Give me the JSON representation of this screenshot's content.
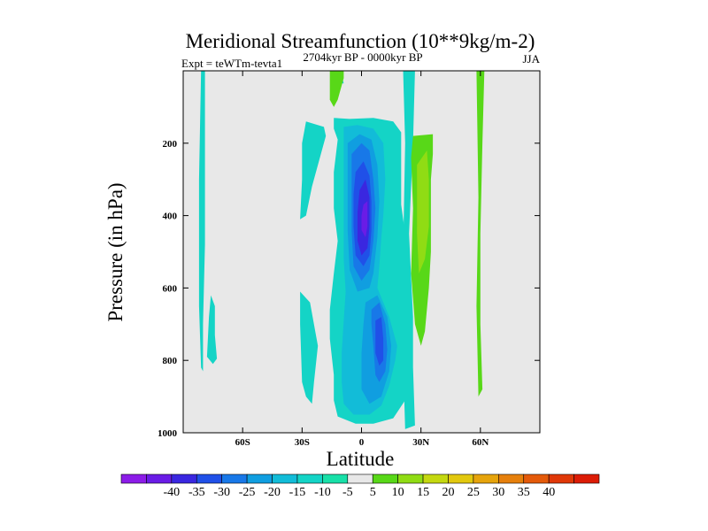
{
  "chart_data": {
    "type": "contour",
    "title": "Meridional Streamfunction (10**9kg/m-2)",
    "subtitle_left": "Expt = teWTm-tevta1",
    "subtitle_center": "2704kyr BP - 0000kyr BP",
    "subtitle_right": "JJA",
    "xlabel": "Latitude",
    "ylabel": "Pressure (in hPa)",
    "xlim": [
      -90,
      90
    ],
    "ylim": [
      0,
      1000
    ],
    "y_inverted": true,
    "x_ticks": [
      {
        "value": -60,
        "label": "60S"
      },
      {
        "value": -30,
        "label": "30S"
      },
      {
        "value": 0,
        "label": "0"
      },
      {
        "value": 30,
        "label": "30N"
      },
      {
        "value": 60,
        "label": "60N"
      }
    ],
    "y_ticks": [
      {
        "value": 200,
        "label": "200"
      },
      {
        "value": 400,
        "label": "400"
      },
      {
        "value": 600,
        "label": "600"
      },
      {
        "value": 800,
        "label": "800"
      },
      {
        "value": 1000,
        "label": "1000"
      }
    ],
    "background_color": "#e8e8e8",
    "colorbar": {
      "colors": [
        "#8c1ce8",
        "#6a1ce6",
        "#3a27e0",
        "#2050e8",
        "#1878e8",
        "#109ee0",
        "#12bcd8",
        "#14d4c6",
        "#18e0a8",
        "#e8e8e8",
        "#58d818",
        "#90dc14",
        "#c4d810",
        "#e2c80e",
        "#e6a40c",
        "#e6800c",
        "#e45a0a",
        "#e03808",
        "#dc1c06"
      ],
      "labels": [
        "-40",
        "-35",
        "-30",
        "-25",
        "-20",
        "-15",
        "-10",
        "-5",
        "5",
        "10",
        "15",
        "20",
        "25",
        "30",
        "35",
        "40"
      ]
    },
    "contours": [
      {
        "level": -5,
        "color": "#14d4c6",
        "points": [
          [
            -14,
            130
          ],
          [
            -6,
            133
          ],
          [
            6,
            130
          ],
          [
            16,
            140
          ],
          [
            20,
            170
          ],
          [
            20,
            250
          ],
          [
            20,
            370
          ],
          [
            22,
            450
          ],
          [
            22,
            540
          ],
          [
            22,
            620
          ],
          [
            22,
            740
          ],
          [
            24,
            830
          ],
          [
            22,
            910
          ],
          [
            16,
            960
          ],
          [
            6,
            975
          ],
          [
            -3,
            975
          ],
          [
            -12,
            955
          ],
          [
            -14,
            910
          ],
          [
            -14,
            840
          ],
          [
            -16,
            740
          ],
          [
            -16,
            660
          ],
          [
            -14,
            560
          ],
          [
            -12,
            470
          ],
          [
            -14,
            380
          ],
          [
            -14,
            280
          ],
          [
            -12,
            190
          ],
          [
            -14,
            160
          ]
        ]
      },
      {
        "level": -5,
        "color": "#14d4c6",
        "points": [
          [
            -12,
            35
          ],
          [
            -13,
            10
          ],
          [
            -16,
            0
          ],
          [
            -13,
            0
          ],
          [
            -10,
            10
          ],
          [
            -9,
            35
          ]
        ]
      },
      {
        "level": -5,
        "color": "#14d4c6",
        "points": [
          [
            -28,
            140
          ],
          [
            -19,
            155
          ],
          [
            -18,
            180
          ],
          [
            -25,
            320
          ],
          [
            -28,
            400
          ],
          [
            -31,
            410
          ],
          [
            -30,
            300
          ],
          [
            -30,
            200
          ]
        ]
      },
      {
        "level": -5,
        "color": "#14d4c6",
        "points": [
          [
            -31,
            610
          ],
          [
            -26,
            640
          ],
          [
            -22,
            760
          ],
          [
            -24,
            860
          ],
          [
            -25,
            920
          ],
          [
            -28,
            900
          ],
          [
            -30,
            860
          ],
          [
            -31,
            700
          ]
        ]
      },
      {
        "level": -5,
        "color": "#14d4c6",
        "points": [
          [
            -81,
            0
          ],
          [
            -79,
            0
          ],
          [
            -79,
            480
          ],
          [
            -80,
            700
          ],
          [
            -80,
            830
          ],
          [
            -81,
            820
          ],
          [
            -82,
            650
          ],
          [
            -82,
            300
          ]
        ]
      },
      {
        "level": -5,
        "color": "#14d4c6",
        "points": [
          [
            -76,
            620
          ],
          [
            -74,
            650
          ],
          [
            -74,
            730
          ],
          [
            -73,
            795
          ],
          [
            -75,
            810
          ],
          [
            -78,
            790
          ],
          [
            -77,
            680
          ]
        ]
      },
      {
        "level": -5,
        "color": "#14d4c6",
        "points": [
          [
            21,
            0
          ],
          [
            27,
            0
          ],
          [
            26,
            200
          ],
          [
            24,
            450
          ],
          [
            26,
            680
          ],
          [
            26,
            820
          ],
          [
            27,
            980
          ],
          [
            22,
            990
          ],
          [
            21,
            800
          ],
          [
            21,
            500
          ],
          [
            22,
            200
          ]
        ]
      },
      {
        "level": 5,
        "color": "#58d818",
        "points": [
          [
            -16,
            0
          ],
          [
            -9,
            0
          ],
          [
            -9,
            20
          ],
          [
            -12,
            80
          ],
          [
            -14,
            100
          ],
          [
            -16,
            80
          ]
        ]
      },
      {
        "level": 5,
        "color": "#58d818",
        "points": [
          [
            26,
            180
          ],
          [
            36,
            175
          ],
          [
            36,
            230
          ],
          [
            35,
            300
          ],
          [
            35,
            500
          ],
          [
            34,
            600
          ],
          [
            32,
            720
          ],
          [
            30,
            760
          ],
          [
            27,
            700
          ],
          [
            25,
            560
          ],
          [
            26,
            380
          ],
          [
            25,
            240
          ]
        ]
      },
      {
        "level": 5,
        "color": "#58d818",
        "points": [
          [
            58,
            0
          ],
          [
            62,
            0
          ],
          [
            61,
            200
          ],
          [
            60,
            450
          ],
          [
            60,
            700
          ],
          [
            61,
            880
          ],
          [
            59,
            900
          ],
          [
            58,
            650
          ],
          [
            59,
            350
          ]
        ]
      },
      {
        "level": 10,
        "color": "#90dc14",
        "points": [
          [
            28,
            260
          ],
          [
            33,
            220
          ],
          [
            34,
            300
          ],
          [
            34,
            430
          ],
          [
            32,
            520
          ],
          [
            29,
            560
          ],
          [
            28,
            450
          ],
          [
            28,
            340
          ]
        ]
      },
      {
        "level": -10,
        "color": "#12bcd8",
        "points": [
          [
            -9,
            155
          ],
          [
            -2,
            150
          ],
          [
            6,
            160
          ],
          [
            11,
            200
          ],
          [
            12,
            300
          ],
          [
            11,
            400
          ],
          [
            10,
            460
          ],
          [
            9,
            540
          ],
          [
            8,
            600
          ],
          [
            14,
            680
          ],
          [
            18,
            760
          ],
          [
            17,
            800
          ],
          [
            14,
            870
          ],
          [
            10,
            925
          ],
          [
            4,
            950
          ],
          [
            -4,
            950
          ],
          [
            -9,
            920
          ],
          [
            -10,
            860
          ],
          [
            -10,
            780
          ],
          [
            -9,
            690
          ],
          [
            -8,
            610
          ],
          [
            -9,
            520
          ],
          [
            -9,
            420
          ],
          [
            -9,
            310
          ],
          [
            -9,
            210
          ]
        ]
      },
      {
        "level": -15,
        "color": "#109ee0",
        "points": [
          [
            -7,
            200
          ],
          [
            -1,
            175
          ],
          [
            5,
            190
          ],
          [
            8,
            260
          ],
          [
            9,
            360
          ],
          [
            8,
            460
          ],
          [
            6,
            560
          ],
          [
            4,
            600
          ],
          [
            -2,
            610
          ],
          [
            -6,
            550
          ],
          [
            -7,
            440
          ],
          [
            -7,
            330
          ],
          [
            -7,
            260
          ]
        ]
      },
      {
        "level": -15,
        "color": "#109ee0",
        "points": [
          [
            2,
            640
          ],
          [
            8,
            620
          ],
          [
            13,
            680
          ],
          [
            15,
            760
          ],
          [
            14,
            830
          ],
          [
            10,
            900
          ],
          [
            4,
            920
          ],
          [
            0,
            880
          ],
          [
            0,
            780
          ],
          [
            1,
            700
          ]
        ]
      },
      {
        "level": -20,
        "color": "#1878e8",
        "points": [
          [
            -5,
            230
          ],
          [
            0,
            200
          ],
          [
            4,
            220
          ],
          [
            6,
            300
          ],
          [
            7,
            380
          ],
          [
            6,
            470
          ],
          [
            4,
            550
          ],
          [
            0,
            580
          ],
          [
            -4,
            540
          ],
          [
            -5,
            440
          ],
          [
            -5,
            330
          ]
        ]
      },
      {
        "level": -20,
        "color": "#1878e8",
        "points": [
          [
            5,
            660
          ],
          [
            9,
            640
          ],
          [
            12,
            700
          ],
          [
            13,
            770
          ],
          [
            12,
            830
          ],
          [
            9,
            860
          ],
          [
            7,
            840
          ],
          [
            6,
            760
          ],
          [
            5,
            700
          ]
        ]
      },
      {
        "level": -25,
        "color": "#2050e8",
        "points": [
          [
            -3,
            280
          ],
          [
            1,
            250
          ],
          [
            4,
            290
          ],
          [
            5,
            360
          ],
          [
            5,
            440
          ],
          [
            4,
            510
          ],
          [
            1,
            540
          ],
          [
            -3,
            510
          ],
          [
            -4,
            430
          ],
          [
            -4,
            340
          ]
        ]
      },
      {
        "level": -25,
        "color": "#2050e8",
        "points": [
          [
            7,
            690
          ],
          [
            10,
            680
          ],
          [
            11,
            740
          ],
          [
            11,
            800
          ],
          [
            9,
            815
          ],
          [
            7,
            780
          ]
        ]
      },
      {
        "level": -30,
        "color": "#3a27e0",
        "points": [
          [
            -1,
            330
          ],
          [
            2,
            300
          ],
          [
            4,
            350
          ],
          [
            4,
            430
          ],
          [
            3,
            490
          ],
          [
            0,
            510
          ],
          [
            -2,
            470
          ],
          [
            -2,
            390
          ]
        ]
      },
      {
        "level": -35,
        "color": "#6a1ce6",
        "points": [
          [
            1,
            370
          ],
          [
            3,
            360
          ],
          [
            3,
            430
          ],
          [
            2,
            460
          ],
          [
            0,
            440
          ],
          [
            0,
            400
          ]
        ]
      }
    ]
  }
}
